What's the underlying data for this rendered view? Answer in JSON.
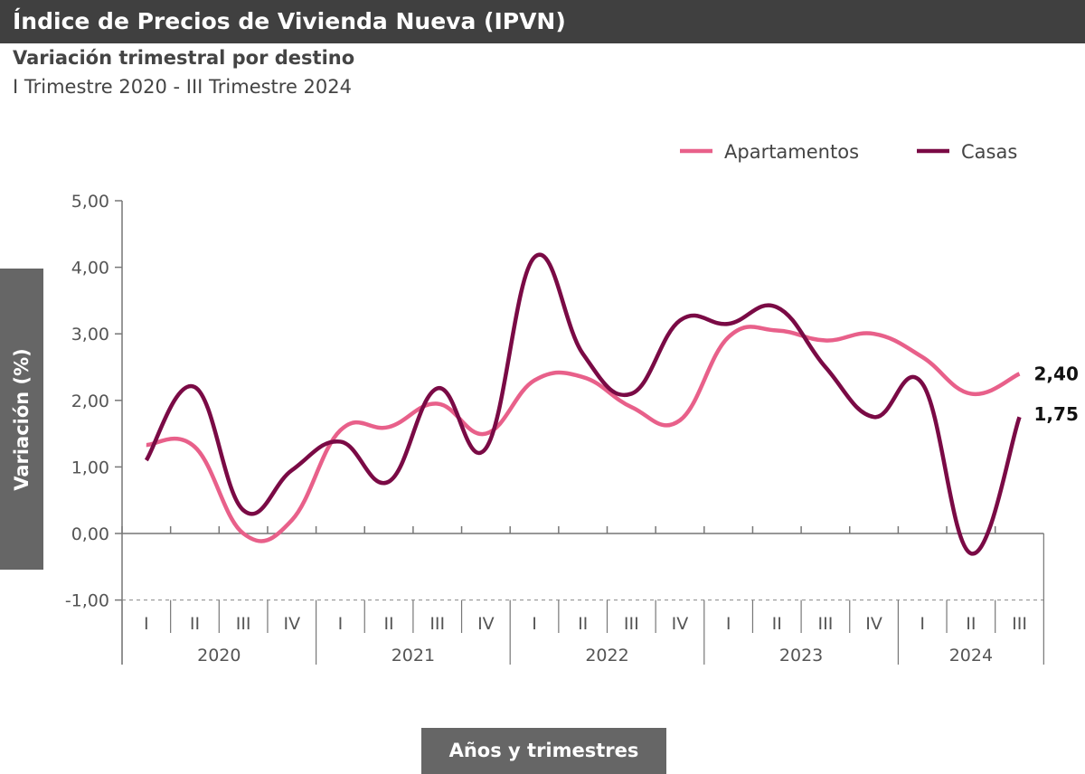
{
  "header": {
    "title": "Índice de Precios de Vivienda Nueva (IPVN)",
    "subtitle": "Variación trimestral por destino",
    "period": "I Trimestre 2020 - III Trimestre 2024"
  },
  "chart_data": {
    "type": "line",
    "ylabel": "Variación (%)",
    "xlabel": "Años y trimestres",
    "ylim": [
      -1,
      5
    ],
    "yticks": [
      "5,00",
      "4,00",
      "3,00",
      "2,00",
      "1,00",
      "0,00",
      "-1,00"
    ],
    "ytick_values": [
      5,
      4,
      3,
      2,
      1,
      0,
      -1
    ],
    "years": [
      "2020",
      "2021",
      "2022",
      "2023",
      "2024"
    ],
    "quarters": [
      [
        "I",
        "II",
        "III",
        "IV"
      ],
      [
        "I",
        "II",
        "III",
        "IV"
      ],
      [
        "I",
        "II",
        "III",
        "IV"
      ],
      [
        "I",
        "II",
        "III",
        "IV"
      ],
      [
        "I",
        "II",
        "III"
      ]
    ],
    "legend_position": "top-right",
    "series": [
      {
        "name": "Apartamentos",
        "color": "#e8608a",
        "values": [
          1.33,
          1.3,
          0.0,
          0.2,
          1.55,
          1.6,
          1.95,
          1.5,
          2.3,
          2.35,
          1.9,
          1.7,
          2.95,
          3.05,
          2.9,
          3.0,
          2.65,
          2.1,
          2.4
        ],
        "end_label": "2,40"
      },
      {
        "name": "Casas",
        "color": "#7a0a45",
        "values": [
          1.1,
          2.2,
          0.35,
          0.95,
          1.38,
          0.78,
          2.18,
          1.28,
          4.15,
          2.7,
          2.1,
          3.2,
          3.15,
          3.4,
          2.5,
          1.75,
          2.25,
          -0.3,
          1.75
        ],
        "end_label": "1,75"
      }
    ]
  }
}
